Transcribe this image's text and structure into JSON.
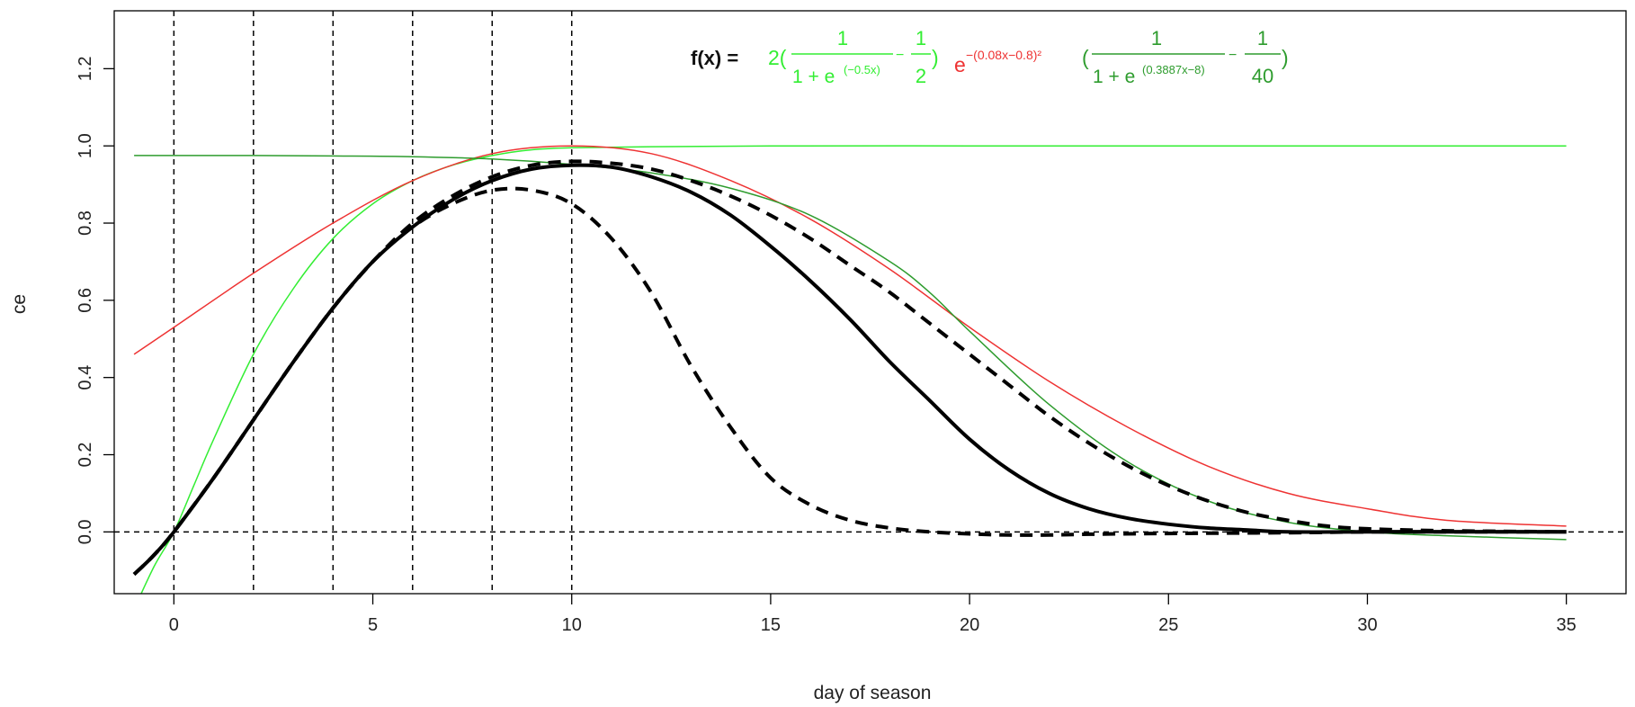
{
  "chart_data": {
    "type": "line",
    "title": "",
    "xlabel": "day of season",
    "ylabel": "ce",
    "xlim": [
      -1.5,
      36.5
    ],
    "ylim": [
      -0.16,
      1.35
    ],
    "x_ticks": [
      0,
      5,
      10,
      15,
      20,
      25,
      30,
      35
    ],
    "y_ticks": [
      0.0,
      0.2,
      0.4,
      0.6,
      0.8,
      1.0,
      1.2
    ],
    "x_tick_labels": [
      "0",
      "5",
      "10",
      "15",
      "20",
      "25",
      "30",
      "35"
    ],
    "y_tick_labels": [
      "0.0",
      "0.2",
      "0.4",
      "0.6",
      "0.8",
      "1.0",
      "1.2"
    ],
    "vlines": [
      0,
      2,
      4,
      6,
      8,
      10
    ],
    "hline": 0,
    "colors": {
      "light_green": "#33ee33",
      "red": "#ee3333",
      "dark_green": "#2e9c2e",
      "black": "#000000"
    },
    "series": [
      {
        "x": [
          -1,
          -0.5,
          0,
          0.5,
          1,
          2,
          3,
          4,
          5,
          6,
          7,
          8,
          9,
          10,
          12,
          15,
          20,
          25,
          30,
          35
        ],
        "values": [
          -0.2,
          -0.09,
          0.0,
          0.12,
          0.24,
          0.46,
          0.63,
          0.76,
          0.85,
          0.91,
          0.95,
          0.975,
          0.99,
          0.995,
          0.998,
          1.0,
          1.0,
          1.0,
          1.0,
          1.0
        ],
        "color": "light_green",
        "style": "solid",
        "width": 1.5
      },
      {
        "x": [
          -1,
          0,
          2,
          4,
          6,
          8,
          10,
          12,
          14,
          16,
          18,
          20,
          22,
          24,
          26,
          28,
          30,
          32,
          35
        ],
        "values": [
          0.46,
          0.53,
          0.67,
          0.8,
          0.91,
          0.98,
          1.0,
          0.98,
          0.91,
          0.81,
          0.68,
          0.53,
          0.39,
          0.27,
          0.17,
          0.1,
          0.06,
          0.03,
          0.015
        ],
        "color": "red",
        "style": "solid",
        "width": 1.5
      },
      {
        "x": [
          -1,
          0,
          2,
          4,
          6,
          8,
          10,
          12,
          14,
          16,
          18,
          19,
          20,
          22,
          24,
          26,
          28,
          30,
          32,
          35
        ],
        "values": [
          0.975,
          0.975,
          0.975,
          0.974,
          0.972,
          0.966,
          0.952,
          0.93,
          0.89,
          0.82,
          0.7,
          0.62,
          0.52,
          0.33,
          0.18,
          0.08,
          0.025,
          0.0,
          -0.01,
          -0.02
        ],
        "color": "dark_green",
        "style": "solid",
        "width": 1.5
      },
      {
        "x": [
          -1,
          -0.5,
          0,
          1,
          2,
          3,
          4,
          5,
          6,
          7,
          8,
          9,
          10,
          11,
          12,
          13,
          14,
          15,
          16,
          17,
          18,
          19,
          20,
          21,
          22,
          23,
          24,
          25,
          26,
          27,
          28,
          30,
          32,
          35
        ],
        "values": [
          -0.11,
          -0.06,
          0.0,
          0.14,
          0.29,
          0.44,
          0.58,
          0.7,
          0.79,
          0.86,
          0.91,
          0.94,
          0.95,
          0.945,
          0.92,
          0.88,
          0.82,
          0.74,
          0.65,
          0.55,
          0.44,
          0.34,
          0.24,
          0.16,
          0.1,
          0.06,
          0.035,
          0.02,
          0.01,
          0.005,
          0.0,
          0.0,
          0.0,
          0.0
        ],
        "color": "black",
        "style": "solid",
        "width": 4
      },
      {
        "x": [
          -1,
          -0.5,
          0,
          1,
          2,
          3,
          4,
          5,
          6,
          7,
          8,
          9,
          10,
          11,
          12,
          13,
          14,
          15,
          16,
          17,
          18,
          19,
          20,
          21,
          22,
          23,
          24,
          25,
          26,
          27,
          28,
          29,
          30,
          32,
          35
        ],
        "values": [
          -0.11,
          -0.06,
          0.0,
          0.14,
          0.29,
          0.44,
          0.58,
          0.7,
          0.8,
          0.87,
          0.92,
          0.95,
          0.96,
          0.955,
          0.94,
          0.91,
          0.87,
          0.82,
          0.76,
          0.69,
          0.62,
          0.54,
          0.46,
          0.38,
          0.3,
          0.23,
          0.17,
          0.12,
          0.08,
          0.05,
          0.03,
          0.015,
          0.008,
          0.003,
          0.0
        ],
        "color": "black",
        "style": "dashed",
        "width": 4
      },
      {
        "x": [
          -1,
          -0.5,
          0,
          1,
          2,
          3,
          4,
          5,
          6,
          7,
          8,
          9,
          10,
          11,
          12,
          13,
          14,
          15,
          16,
          17,
          18,
          19,
          20,
          21,
          22,
          23,
          25,
          28,
          30,
          32,
          35
        ],
        "values": [
          -0.11,
          -0.06,
          0.0,
          0.14,
          0.29,
          0.44,
          0.58,
          0.7,
          0.79,
          0.85,
          0.885,
          0.885,
          0.85,
          0.76,
          0.62,
          0.43,
          0.27,
          0.14,
          0.07,
          0.03,
          0.01,
          0.0,
          -0.005,
          -0.008,
          -0.008,
          -0.006,
          -0.004,
          -0.002,
          0.0,
          0.0,
          0.0
        ],
        "color": "black",
        "style": "dashed",
        "width": 4
      }
    ]
  },
  "formula": {
    "label": "f(x) =",
    "part1": {
      "coef": "2(",
      "num": "1",
      "den_base": "1 + e",
      "den_exp": "(−0.5x)",
      "minus": "−",
      "frac2_num": "1",
      "frac2_den": "2",
      "close": ")"
    },
    "part2": {
      "base": "e",
      "exp": "−(0.08x−0.8)²"
    },
    "part3": {
      "open": "(",
      "num": "1",
      "den_base": "1 + e",
      "den_exp": "(0.3887x−8)",
      "minus": "−",
      "frac2_num": "1",
      "frac2_den": "40",
      "close": ")"
    }
  }
}
